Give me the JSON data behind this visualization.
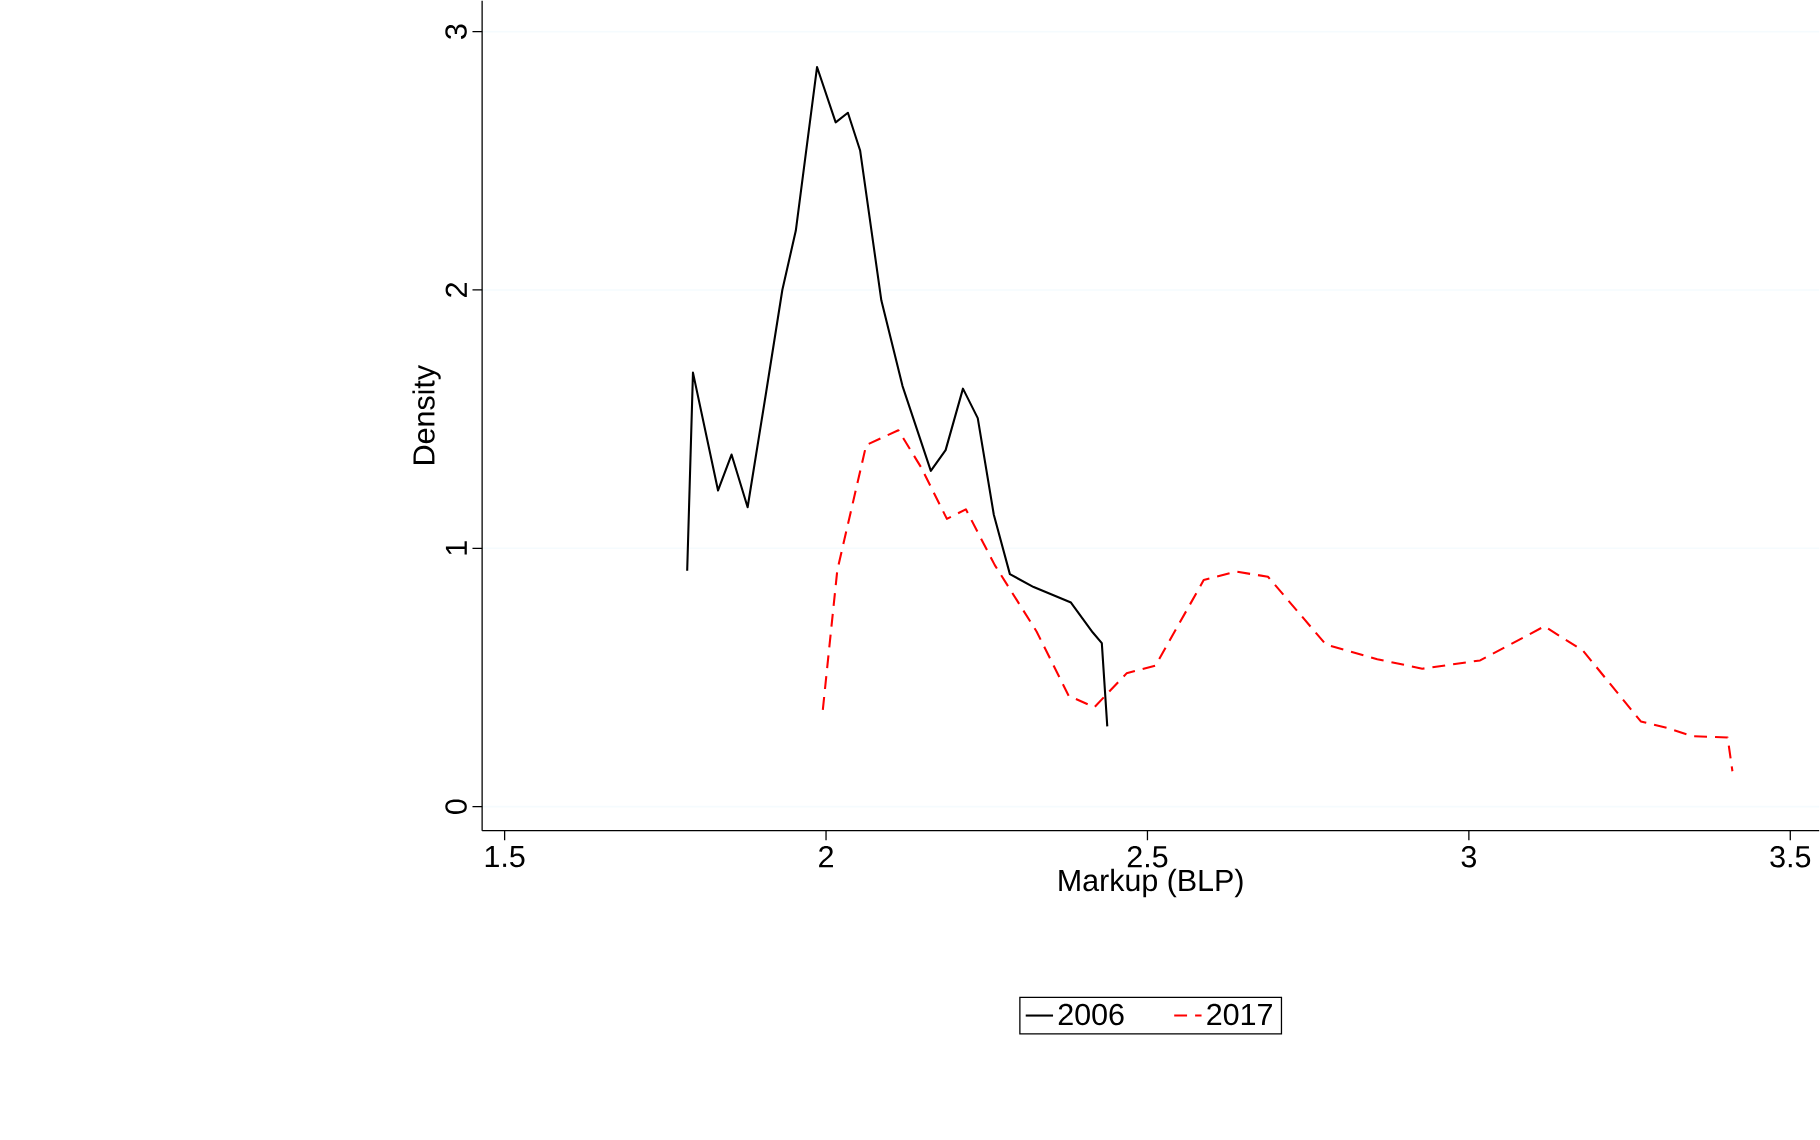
{
  "chart_data": {
    "type": "line",
    "xlabel": "Markup (BLP)",
    "ylabel": "Density",
    "xlim": [
      1.465,
      3.545
    ],
    "ylim": [
      -0.093,
      3.12
    ],
    "xticks": [
      1.5,
      2,
      2.5,
      3,
      3.5
    ],
    "yticks": [
      0,
      1,
      2,
      3
    ],
    "grid": "y",
    "legend": "bottom",
    "series": [
      {
        "name": "2006",
        "color": "#000000",
        "line_style": "solid",
        "x": [
          1.784,
          1.793,
          1.832,
          1.853,
          1.878,
          1.907,
          1.932,
          1.953,
          1.986,
          2.015,
          2.034,
          2.053,
          2.086,
          2.119,
          2.163,
          2.186,
          2.213,
          2.236,
          2.261,
          2.286,
          2.323,
          2.381,
          2.415,
          2.429,
          2.4375
        ],
        "values": [
          0.913,
          1.68,
          1.224,
          1.363,
          1.159,
          1.607,
          2.0,
          2.23,
          2.863,
          2.649,
          2.686,
          2.54,
          1.96,
          1.628,
          1.3,
          1.38,
          1.618,
          1.504,
          1.13,
          0.9,
          0.85,
          0.79,
          0.674,
          0.633,
          0.311
        ]
      },
      {
        "name": "2017",
        "color": "#ff0000",
        "line_style": "dashed",
        "x": [
          1.995,
          2.0175,
          2.0625,
          2.1125,
          2.148,
          2.188,
          2.2175,
          2.2625,
          2.3275,
          2.3775,
          2.4175,
          2.4675,
          2.5125,
          2.5875,
          2.6375,
          2.6875,
          2.7775,
          2.8575,
          2.9275,
          3.0175,
          3.1175,
          3.1775,
          3.2675,
          3.3075,
          3.3475,
          3.4025,
          3.41
        ],
        "values": [
          0.375,
          0.915,
          1.4,
          1.457,
          1.313,
          1.114,
          1.151,
          0.935,
          0.678,
          0.429,
          0.385,
          0.516,
          0.546,
          0.877,
          0.91,
          0.89,
          0.628,
          0.571,
          0.534,
          0.566,
          0.698,
          0.604,
          0.33,
          0.305,
          0.273,
          0.268,
          0.137
        ]
      }
    ]
  }
}
